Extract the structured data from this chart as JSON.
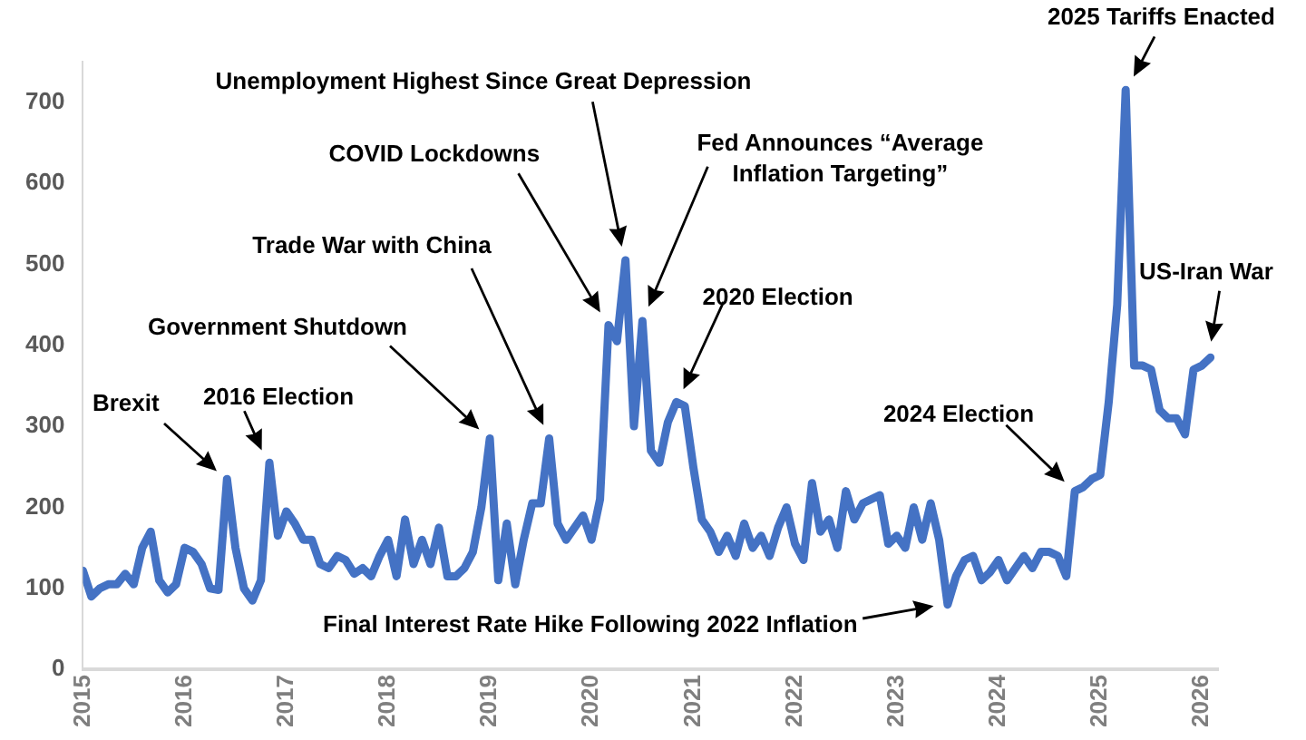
{
  "chart_data": {
    "type": "line",
    "x": [
      "2015-01",
      "2015-02",
      "2015-03",
      "2015-04",
      "2015-05",
      "2015-06",
      "2015-07",
      "2015-08",
      "2015-09",
      "2015-10",
      "2015-11",
      "2015-12",
      "2016-01",
      "2016-02",
      "2016-03",
      "2016-04",
      "2016-05",
      "2016-06",
      "2016-07",
      "2016-08",
      "2016-09",
      "2016-10",
      "2016-11",
      "2016-12",
      "2017-01",
      "2017-02",
      "2017-03",
      "2017-04",
      "2017-05",
      "2017-06",
      "2017-07",
      "2017-08",
      "2017-09",
      "2017-10",
      "2017-11",
      "2017-12",
      "2018-01",
      "2018-02",
      "2018-03",
      "2018-04",
      "2018-05",
      "2018-06",
      "2018-07",
      "2018-08",
      "2018-09",
      "2018-10",
      "2018-11",
      "2018-12",
      "2019-01",
      "2019-02",
      "2019-03",
      "2019-04",
      "2019-05",
      "2019-06",
      "2019-07",
      "2019-08",
      "2019-09",
      "2019-10",
      "2019-11",
      "2019-12",
      "2020-01",
      "2020-02",
      "2020-03",
      "2020-04",
      "2020-05",
      "2020-06",
      "2020-07",
      "2020-08",
      "2020-09",
      "2020-10",
      "2020-11",
      "2020-12",
      "2021-01",
      "2021-02",
      "2021-03",
      "2021-04",
      "2021-05",
      "2021-06",
      "2021-07",
      "2021-08",
      "2021-09",
      "2021-10",
      "2021-11",
      "2021-12",
      "2022-01",
      "2022-02",
      "2022-03",
      "2022-04",
      "2022-05",
      "2022-06",
      "2022-07",
      "2022-08",
      "2022-09",
      "2022-10",
      "2022-11",
      "2022-12",
      "2023-01",
      "2023-02",
      "2023-03",
      "2023-04",
      "2023-05",
      "2023-06",
      "2023-07",
      "2023-08",
      "2023-09",
      "2023-10",
      "2023-11",
      "2023-12",
      "2024-01",
      "2024-02",
      "2024-03",
      "2024-04",
      "2024-05",
      "2024-06",
      "2024-07",
      "2024-08",
      "2024-09",
      "2024-10",
      "2024-11",
      "2024-12",
      "2025-01",
      "2025-02",
      "2025-03",
      "2025-04",
      "2025-05",
      "2025-06",
      "2025-07",
      "2025-08",
      "2025-09",
      "2025-10",
      "2025-11",
      "2025-12",
      "2026-01",
      "2026-02"
    ],
    "series": [
      {
        "color": "#4472c4",
        "values": [
          122,
          90,
          100,
          105,
          105,
          118,
          105,
          150,
          170,
          110,
          95,
          105,
          150,
          145,
          130,
          100,
          98,
          235,
          150,
          100,
          85,
          110,
          255,
          165,
          195,
          180,
          160,
          160,
          130,
          125,
          140,
          135,
          118,
          125,
          115,
          140,
          160,
          115,
          185,
          130,
          160,
          130,
          175,
          115,
          115,
          125,
          145,
          200,
          285,
          110,
          180,
          105,
          160,
          205,
          205,
          285,
          180,
          160,
          175,
          190,
          160,
          210,
          425,
          405,
          505,
          300,
          430,
          270,
          255,
          305,
          330,
          325,
          250,
          185,
          170,
          145,
          165,
          140,
          180,
          150,
          165,
          140,
          175,
          200,
          155,
          135,
          230,
          170,
          185,
          150,
          220,
          185,
          205,
          210,
          215,
          155,
          165,
          150,
          200,
          160,
          205,
          160,
          80,
          115,
          135,
          140,
          110,
          120,
          135,
          110,
          125,
          140,
          125,
          145,
          145,
          140,
          115,
          220,
          225,
          235,
          240,
          330,
          450,
          715,
          375,
          375,
          370,
          320,
          310,
          310,
          290,
          370,
          375,
          385
        ]
      }
    ],
    "xlim": [
      "2015-01",
      "2026-03"
    ],
    "xticks": [
      "2015",
      "2016",
      "2017",
      "2018",
      "2019",
      "2020",
      "2021",
      "2022",
      "2023",
      "2024",
      "2025",
      "2026"
    ],
    "ylim": [
      0,
      750
    ],
    "yticks": [
      0,
      100,
      200,
      300,
      400,
      500,
      600,
      700
    ],
    "grid": false,
    "legend": false,
    "marker": "none",
    "line_style": "solid",
    "annotations": [
      "Brexit",
      "2016 Election",
      "Government Shutdown",
      "Trade War with China",
      "COVID Lockdowns",
      "Unemployment Highest Since Great Depression",
      "Fed Announces “Average Inflation Targeting”",
      "2020 Election",
      "Final Interest Rate Hike Following 2022 Inflation",
      "2024 Election",
      "2025 Tariffs Enacted",
      "US-Iran War"
    ]
  }
}
